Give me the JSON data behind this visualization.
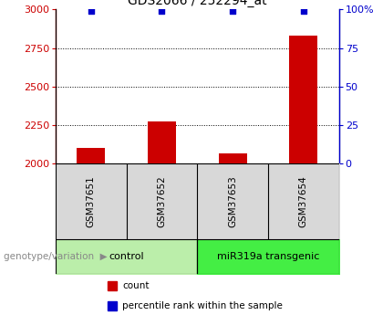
{
  "title": "GDS2066 / 252294_at",
  "samples": [
    "GSM37651",
    "GSM37652",
    "GSM37653",
    "GSM37654"
  ],
  "count_values": [
    2105,
    2275,
    2070,
    2830
  ],
  "percentile_values": [
    99,
    99,
    99,
    99
  ],
  "ymin": 2000,
  "ymax": 3000,
  "yticks": [
    2000,
    2250,
    2500,
    2750,
    3000
  ],
  "y2min": 0,
  "y2max": 100,
  "y2ticks": [
    0,
    25,
    50,
    75,
    100
  ],
  "bar_color": "#cc0000",
  "point_color": "#0000cc",
  "groups": [
    {
      "label": "control",
      "indices": [
        0,
        1
      ],
      "color": "#bbeeaa"
    },
    {
      "label": "miR319a transgenic",
      "indices": [
        2,
        3
      ],
      "color": "#44ee44"
    }
  ],
  "genotype_label": "genotype/variation",
  "legend_count": "count",
  "legend_percentile": "percentile rank within the sample",
  "title_fontsize": 10,
  "tick_fontsize": 8,
  "sample_fontsize": 7.5,
  "group_fontsize": 8,
  "legend_fontsize": 7.5
}
